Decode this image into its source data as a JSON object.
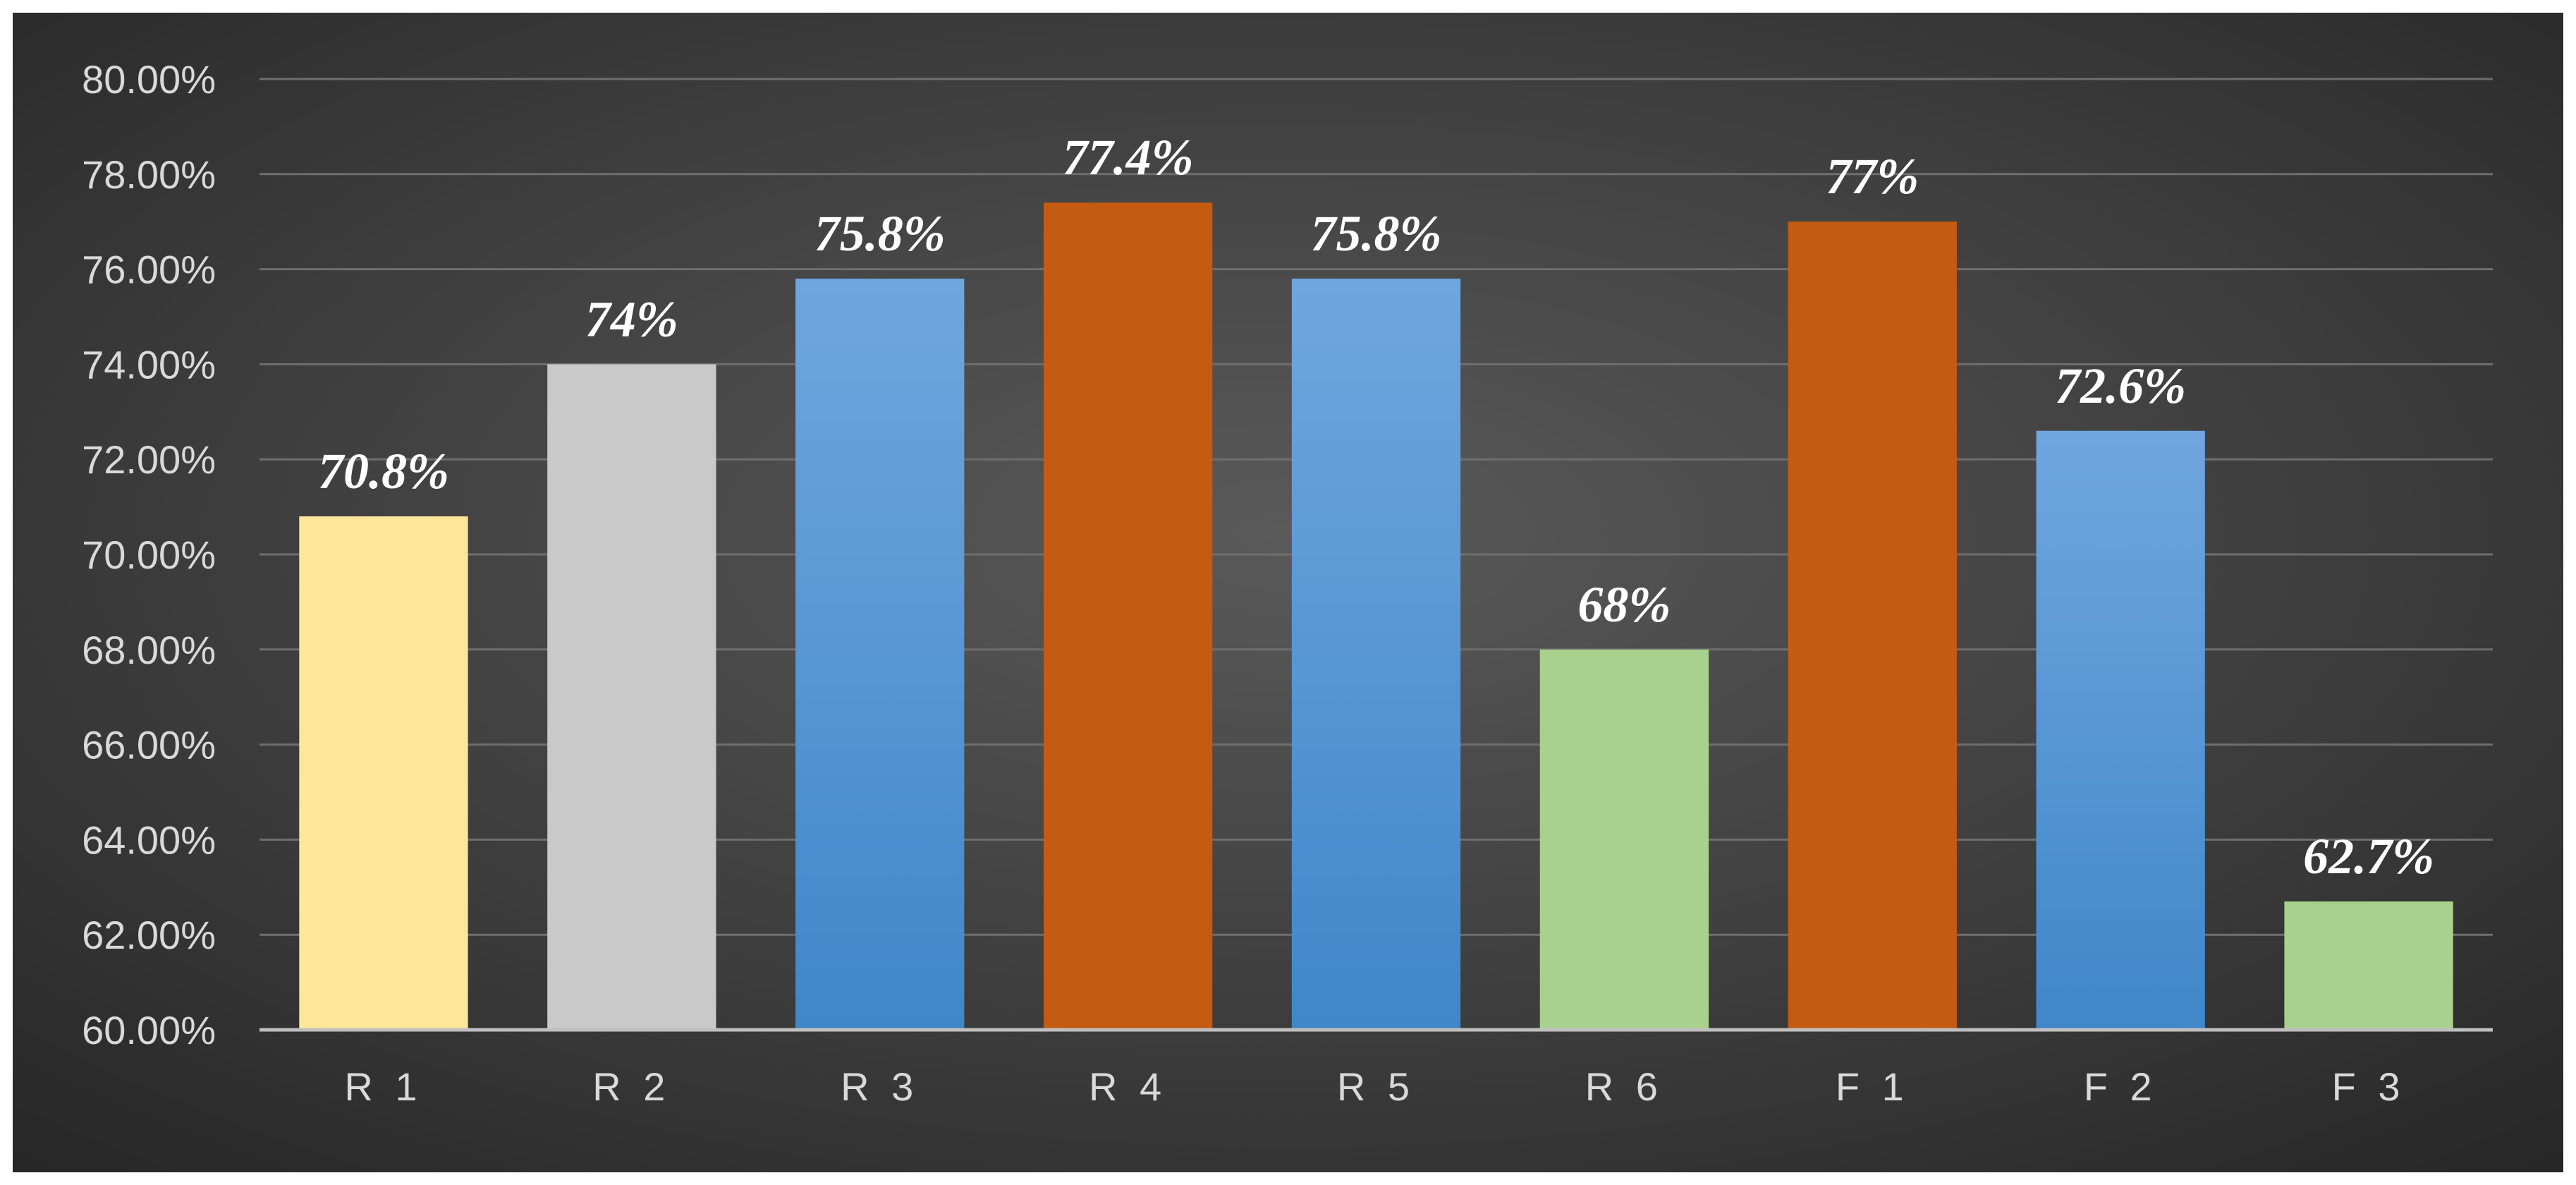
{
  "colors": {
    "yellow": "#FFE699",
    "gray": "#C9C9C9",
    "blue_top": "#70A6DE",
    "blue_bottom": "#3F87CA",
    "orange": "#C55A11",
    "green": "#A9D18E",
    "background_center": "#5a5a5a",
    "background_edge": "#262626",
    "gridline": "#6e6e6e",
    "axis_line": "#bfbfbf"
  },
  "chart_data": {
    "type": "bar",
    "title": "",
    "xlabel": "",
    "ylabel": "",
    "ylim": [
      60,
      80
    ],
    "ytick_step": 2,
    "yticks": [
      "60.00%",
      "62.00%",
      "64.00%",
      "66.00%",
      "68.00%",
      "70.00%",
      "72.00%",
      "74.00%",
      "76.00%",
      "78.00%",
      "80.00%"
    ],
    "grid": true,
    "legend": "none",
    "categories": [
      "R 1",
      "R 2",
      "R 3",
      "R 4",
      "R 5",
      "R 6",
      "F 1",
      "F 2",
      "F 3"
    ],
    "values": [
      70.8,
      74,
      75.8,
      77.4,
      75.8,
      68,
      77,
      72.6,
      62.7
    ],
    "data_labels": [
      "70.8%",
      "74%",
      "75.8%",
      "77.4%",
      "75.8%",
      "68%",
      "77%",
      "72.6%",
      "62.7%"
    ],
    "bar_colors": [
      "yellow",
      "gray",
      "blue",
      "orange",
      "blue",
      "green",
      "orange",
      "blue",
      "green"
    ]
  }
}
